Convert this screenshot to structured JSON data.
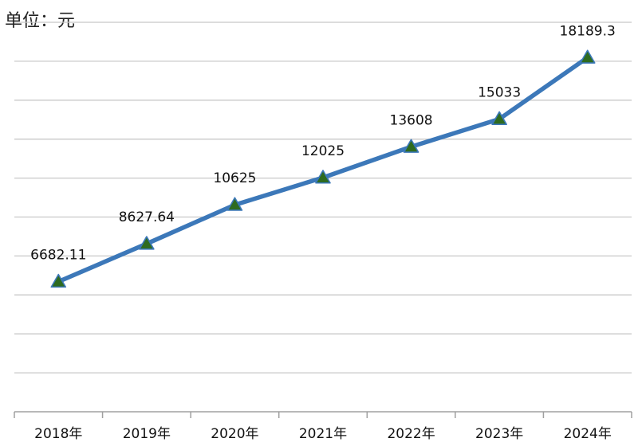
{
  "unit_label": "单位：元",
  "chart_data": {
    "type": "line",
    "categories": [
      "2018年",
      "2019年",
      "2020年",
      "2021年",
      "2022年",
      "2023年",
      "2024年"
    ],
    "values": [
      6682.11,
      8627.64,
      10625,
      12025,
      13608,
      15033,
      18189.3
    ],
    "data_labels": [
      "6682.11",
      "8627.64",
      "10625",
      "12025",
      "13608",
      "15033",
      "18189.3"
    ],
    "title": "",
    "xlabel": "",
    "ylabel": "",
    "ylim": [
      0,
      20000
    ],
    "y_gridline_step": 2000,
    "y_tick_labels_shown": false,
    "grid": true,
    "legend": "none",
    "line_color": "#3c78b9",
    "marker": "triangle",
    "marker_fill": "#2e6b1f",
    "marker_edge": "#3c78b9"
  }
}
